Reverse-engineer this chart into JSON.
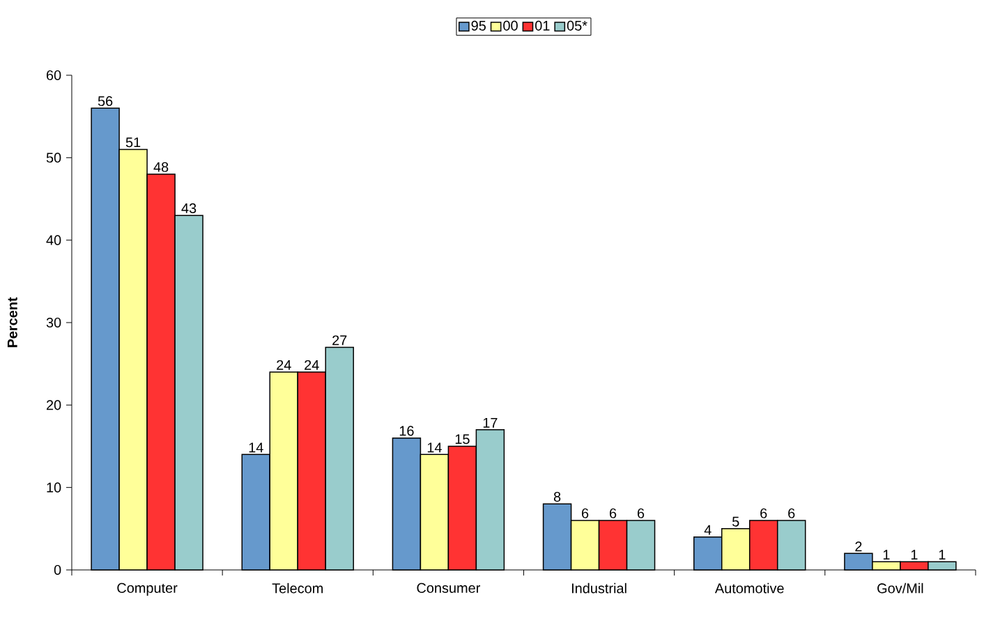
{
  "chart_data": {
    "type": "bar",
    "ylabel": "**Percent**",
    "categories": [
      "Computer",
      "Telecom",
      "Consumer",
      "Industrial",
      "Automotive",
      "Gov/Mil"
    ],
    "series": [
      {
        "name": "95",
        "color": "#6699cc",
        "values": [
          56,
          14,
          16,
          8,
          4,
          2
        ]
      },
      {
        "name": "00",
        "color": "#ffff99",
        "values": [
          51,
          24,
          14,
          6,
          5,
          1
        ]
      },
      {
        "name": "01",
        "color": "#ff3333",
        "values": [
          48,
          24,
          15,
          6,
          6,
          1
        ]
      },
      {
        "name": "05*",
        "color": "#99cccc",
        "values": [
          43,
          27,
          17,
          6,
          6,
          1
        ]
      }
    ],
    "ylim": [
      0,
      60
    ],
    "yticks": [
      0,
      10,
      20,
      30,
      40,
      50,
      60
    ],
    "data_labels": true,
    "legend": "top"
  }
}
